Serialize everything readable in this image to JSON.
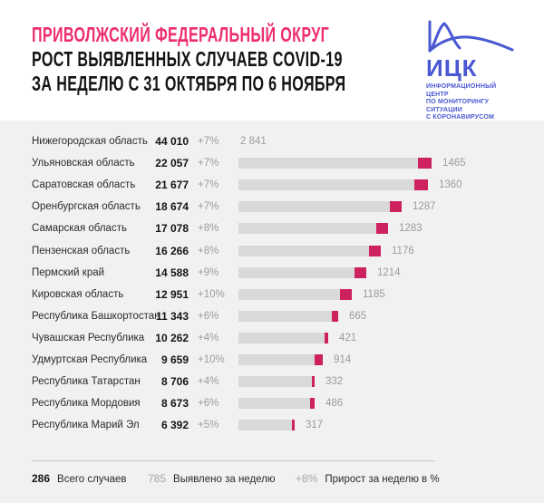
{
  "header": {
    "title": "ПРИВОЛЖСКИЙ ФЕДЕРАЛЬНЫЙ ОКРУГ",
    "subtitle_line1": "РОСТ ВЫЯВЛЕННЫХ СЛУЧАЕВ COVID-19",
    "subtitle_line2": "ЗА НЕДЕЛЮ С 31 ОКТЯБРЯ ПО 6 НОЯБРЯ",
    "title_color": "#ee2e6d"
  },
  "logo": {
    "abbr": "ИЦК",
    "caption_line1": "ИНФОРМАЦИОННЫЙ ЦЕНТР",
    "caption_line2": "ПО МОНИТОРИНГУ СИТУАЦИИ",
    "caption_line3": "С КОРОНАВИРУСОМ",
    "color": "#4a58d2",
    "icon": "epidemic-curve-icon"
  },
  "chart_data": {
    "type": "bar",
    "title": "Рост выявленных случаев COVID-19 за неделю с 31 октября по 6 ноября",
    "region": "Приволжский федеральный округ",
    "orientation": "horizontal",
    "bar_color": "#d9d9d9",
    "bar_accent_color": "#ce2160",
    "note": "bar length is proportional to total cases; accent tip is proportional to weekly growth percent; first row shows no bar",
    "categories": [
      "Нижегородская область",
      "Ульяновская область",
      "Саратовская область",
      "Оренбургская область",
      "Самарская область",
      "Пензенская область",
      "Пермский край",
      "Кировская область",
      "Республика Башкортостан",
      "Чувашская Республика",
      "Удмуртская Республика",
      "Республика Татарстан",
      "Республика Мордовия",
      "Республика Марий Эл"
    ],
    "series": [
      {
        "name": "Всего случаев",
        "values": [
          44010,
          22057,
          21677,
          18674,
          17078,
          16266,
          14588,
          12951,
          11343,
          10262,
          9659,
          8706,
          8673,
          6392
        ]
      },
      {
        "name": "Выявлено за неделю",
        "values": [
          2841,
          1465,
          1360,
          1287,
          1283,
          1176,
          1214,
          1185,
          665,
          421,
          914,
          332,
          486,
          317
        ]
      },
      {
        "name": "Прирост за неделю в %",
        "values": [
          7,
          7,
          7,
          7,
          8,
          8,
          9,
          10,
          6,
          4,
          10,
          4,
          6,
          5
        ]
      }
    ],
    "rows": [
      {
        "region": "Нижегородская область",
        "total": "44 010",
        "growth": "+7%",
        "weekly": "2 841",
        "total_num": 44010,
        "growth_num": 7,
        "show_bar": false
      },
      {
        "region": "Ульяновская область",
        "total": "22 057",
        "growth": "+7%",
        "weekly": "1465",
        "total_num": 22057,
        "growth_num": 7,
        "show_bar": true
      },
      {
        "region": "Саратовская область",
        "total": "21 677",
        "growth": "+7%",
        "weekly": "1360",
        "total_num": 21677,
        "growth_num": 7,
        "show_bar": true
      },
      {
        "region": "Оренбургская область",
        "total": "18 674",
        "growth": "+7%",
        "weekly": "1287",
        "total_num": 18674,
        "growth_num": 7,
        "show_bar": true
      },
      {
        "region": "Самарская область",
        "total": "17 078",
        "growth": "+8%",
        "weekly": "1283",
        "total_num": 17078,
        "growth_num": 8,
        "show_bar": true
      },
      {
        "region": "Пензенская область",
        "total": "16 266",
        "growth": "+8%",
        "weekly": "1176",
        "total_num": 16266,
        "growth_num": 8,
        "show_bar": true
      },
      {
        "region": "Пермский край",
        "total": "14 588",
        "growth": "+9%",
        "weekly": "1214",
        "total_num": 14588,
        "growth_num": 9,
        "show_bar": true
      },
      {
        "region": "Кировская область",
        "total": "12 951",
        "growth": "+10%",
        "weekly": "1185",
        "total_num": 12951,
        "growth_num": 10,
        "show_bar": true
      },
      {
        "region": "Республика Башкортостан",
        "total": "11 343",
        "growth": "+6%",
        "weekly": "665",
        "total_num": 11343,
        "growth_num": 6,
        "show_bar": true
      },
      {
        "region": "Чувашская Республика",
        "total": "10 262",
        "growth": "+4%",
        "weekly": "421",
        "total_num": 10262,
        "growth_num": 4,
        "show_bar": true
      },
      {
        "region": "Удмуртская Республика",
        "total": "9 659",
        "growth": "+10%",
        "weekly": "914",
        "total_num": 9659,
        "growth_num": 10,
        "show_bar": true
      },
      {
        "region": "Республика Татарстан",
        "total": "8 706",
        "growth": "+4%",
        "weekly": "332",
        "total_num": 8706,
        "growth_num": 4,
        "show_bar": true
      },
      {
        "region": "Республика Мордовия",
        "total": "8 673",
        "growth": "+6%",
        "weekly": "486",
        "total_num": 8673,
        "growth_num": 6,
        "show_bar": true
      },
      {
        "region": "Республика Марий Эл",
        "total": "6 392",
        "growth": "+5%",
        "weekly": "317",
        "total_num": 6392,
        "growth_num": 5,
        "show_bar": true
      }
    ]
  },
  "legend": {
    "total_value": "286",
    "total_label": "Всего случаев",
    "weekly_value": "785",
    "weekly_label": "Выявлено за неделю",
    "growth_value": "+8%",
    "growth_label": "Прирост за неделю в %"
  }
}
